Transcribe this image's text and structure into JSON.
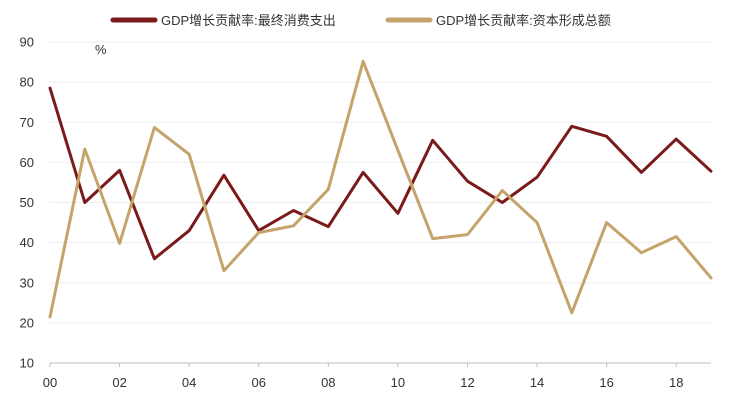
{
  "chart_data": {
    "type": "line",
    "x": [
      "00",
      "01",
      "02",
      "03",
      "04",
      "05",
      "06",
      "07",
      "08",
      "09",
      "10",
      "11",
      "12",
      "13",
      "14",
      "15",
      "16",
      "17",
      "18",
      "19"
    ],
    "x_tick_labels": [
      "00",
      "02",
      "04",
      "06",
      "08",
      "10",
      "12",
      "14",
      "16",
      "18"
    ],
    "y_tick_labels": [
      "10",
      "20",
      "30",
      "40",
      "50",
      "60",
      "70",
      "80",
      "90"
    ],
    "ylim": [
      10,
      90
    ],
    "unit": "%",
    "grid": "horizontal",
    "legend_position": "top",
    "series": [
      {
        "name": "GDP增长贡献率:最终消费支出",
        "color": "#7b1a1a",
        "values": [
          78.5,
          50,
          58,
          36,
          43,
          56.8,
          43,
          48,
          44,
          57.5,
          47.3,
          65.5,
          55.3,
          50,
          56.3,
          69,
          66.5,
          57.5,
          65.8,
          57.8
        ]
      },
      {
        "name": "GDP增长贡献率:资本形成总额",
        "color": "#c4a46b",
        "values": [
          21.5,
          63.3,
          39.8,
          68.7,
          62,
          33,
          42.5,
          44.2,
          53.3,
          85.2,
          63,
          41,
          42,
          53,
          45,
          22.5,
          45,
          37.5,
          41.5,
          31.2
        ]
      }
    ]
  }
}
